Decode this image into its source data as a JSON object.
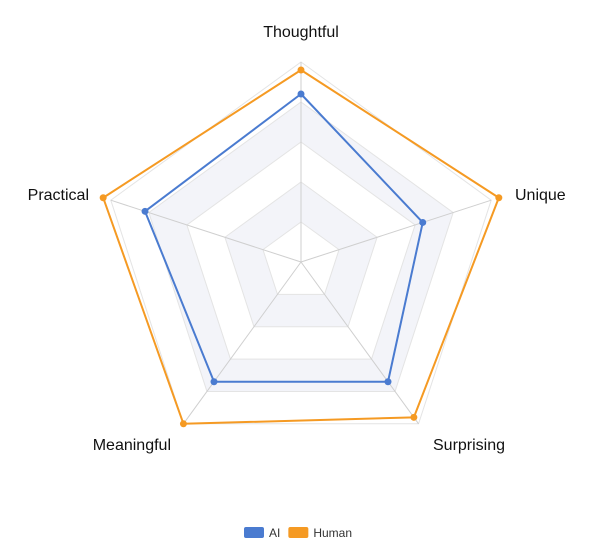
{
  "chart_data": {
    "type": "radar",
    "axes": [
      "Thoughtful",
      "Unique",
      "Surprising",
      "Meaningful",
      "Practical"
    ],
    "r_range": [
      0,
      5
    ],
    "grid_levels": 5,
    "series": [
      {
        "name": "AI",
        "values": [
          4.2,
          3.2,
          3.7,
          3.7,
          4.1
        ],
        "color": "#4a7bd0"
      },
      {
        "name": "Human",
        "values": [
          4.8,
          5.2,
          4.8,
          5.0,
          5.2
        ],
        "color": "#f59a23"
      }
    ],
    "legend_position": "bottom-center",
    "grid": true
  }
}
